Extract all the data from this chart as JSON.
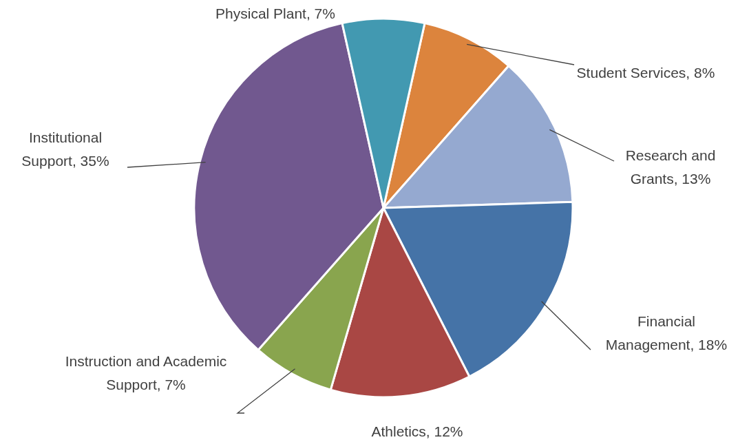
{
  "chart_data": {
    "type": "pie",
    "categories": [
      "Student Services",
      "Research and Grants",
      "Financial Management",
      "Athletics",
      "Instruction and Academic Support",
      "Institutional Support",
      "Physical Plant"
    ],
    "values": [
      8,
      13,
      18,
      12,
      7,
      35,
      7
    ],
    "value_labels": [
      "8%",
      "13%",
      "18%",
      "12%",
      "7%",
      "35%",
      "7%"
    ],
    "colors": [
      "#dc843d",
      "#95a9d0",
      "#4573a7",
      "#a94744",
      "#89a54e",
      "#71588f",
      "#4299b1"
    ],
    "legend": false
  }
}
